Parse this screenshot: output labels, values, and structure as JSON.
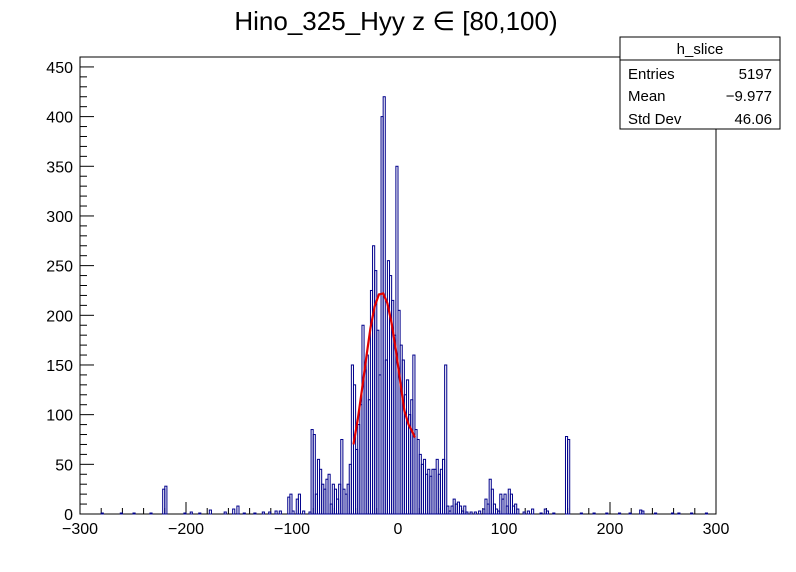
{
  "chart_data": {
    "type": "histogram",
    "title": "Hino_325_Hyy z  ∈ [80,100)",
    "xlim": [
      -300,
      300
    ],
    "ylim": [
      0,
      460
    ],
    "x_ticks": [
      -300,
      -200,
      -100,
      0,
      100,
      200,
      300
    ],
    "y_ticks": [
      0,
      50,
      100,
      150,
      200,
      250,
      300,
      350,
      400,
      450
    ],
    "bin_width": 2,
    "histogram_color": "#00008b",
    "fit_color": "#e00000",
    "bins": [
      {
        "x": -280,
        "y": 1
      },
      {
        "x": -262,
        "y": 1
      },
      {
        "x": -250,
        "y": 1
      },
      {
        "x": -234,
        "y": 1
      },
      {
        "x": -222,
        "y": 25
      },
      {
        "x": -220,
        "y": 28
      },
      {
        "x": -202,
        "y": 1
      },
      {
        "x": -196,
        "y": 2
      },
      {
        "x": -188,
        "y": 1
      },
      {
        "x": -178,
        "y": 4
      },
      {
        "x": -164,
        "y": 2
      },
      {
        "x": -156,
        "y": 5
      },
      {
        "x": -152,
        "y": 8
      },
      {
        "x": -146,
        "y": 1
      },
      {
        "x": -136,
        "y": 1
      },
      {
        "x": -128,
        "y": 2
      },
      {
        "x": -122,
        "y": 2
      },
      {
        "x": -116,
        "y": 3
      },
      {
        "x": -112,
        "y": 3
      },
      {
        "x": -104,
        "y": 17
      },
      {
        "x": -102,
        "y": 20
      },
      {
        "x": -100,
        "y": 3
      },
      {
        "x": -96,
        "y": 15
      },
      {
        "x": -94,
        "y": 20
      },
      {
        "x": -90,
        "y": 3
      },
      {
        "x": -84,
        "y": 2
      },
      {
        "x": -82,
        "y": 85
      },
      {
        "x": -80,
        "y": 80
      },
      {
        "x": -78,
        "y": 20
      },
      {
        "x": -76,
        "y": 55
      },
      {
        "x": -74,
        "y": 45
      },
      {
        "x": -72,
        "y": 30
      },
      {
        "x": -70,
        "y": 25
      },
      {
        "x": -68,
        "y": 35
      },
      {
        "x": -66,
        "y": 40
      },
      {
        "x": -64,
        "y": 10
      },
      {
        "x": -62,
        "y": 30
      },
      {
        "x": -60,
        "y": 25
      },
      {
        "x": -58,
        "y": 15
      },
      {
        "x": -56,
        "y": 30
      },
      {
        "x": -54,
        "y": 75
      },
      {
        "x": -52,
        "y": 25
      },
      {
        "x": -50,
        "y": 20
      },
      {
        "x": -48,
        "y": 30
      },
      {
        "x": -46,
        "y": 50
      },
      {
        "x": -44,
        "y": 150
      },
      {
        "x": -42,
        "y": 130
      },
      {
        "x": -40,
        "y": 65
      },
      {
        "x": -38,
        "y": 90
      },
      {
        "x": -36,
        "y": 110
      },
      {
        "x": -34,
        "y": 190
      },
      {
        "x": -32,
        "y": 145
      },
      {
        "x": -30,
        "y": 160
      },
      {
        "x": -28,
        "y": 115
      },
      {
        "x": -26,
        "y": 225
      },
      {
        "x": -24,
        "y": 270
      },
      {
        "x": -22,
        "y": 245
      },
      {
        "x": -20,
        "y": 185
      },
      {
        "x": -18,
        "y": 140
      },
      {
        "x": -16,
        "y": 400
      },
      {
        "x": -14,
        "y": 420
      },
      {
        "x": -12,
        "y": 155
      },
      {
        "x": -10,
        "y": 255
      },
      {
        "x": -8,
        "y": 240
      },
      {
        "x": -6,
        "y": 215
      },
      {
        "x": -4,
        "y": 180
      },
      {
        "x": -2,
        "y": 350
      },
      {
        "x": 0,
        "y": 205
      },
      {
        "x": 2,
        "y": 170
      },
      {
        "x": 4,
        "y": 155
      },
      {
        "x": 6,
        "y": 120
      },
      {
        "x": 8,
        "y": 135
      },
      {
        "x": 10,
        "y": 100
      },
      {
        "x": 12,
        "y": 115
      },
      {
        "x": 14,
        "y": 160
      },
      {
        "x": 16,
        "y": 85
      },
      {
        "x": 18,
        "y": 75
      },
      {
        "x": 20,
        "y": 60
      },
      {
        "x": 22,
        "y": 50
      },
      {
        "x": 24,
        "y": 55
      },
      {
        "x": 26,
        "y": 40
      },
      {
        "x": 28,
        "y": 45
      },
      {
        "x": 30,
        "y": 38
      },
      {
        "x": 32,
        "y": 45
      },
      {
        "x": 34,
        "y": 45
      },
      {
        "x": 36,
        "y": 55
      },
      {
        "x": 38,
        "y": 40
      },
      {
        "x": 40,
        "y": 45
      },
      {
        "x": 42,
        "y": 55
      },
      {
        "x": 44,
        "y": 150
      },
      {
        "x": 46,
        "y": 8
      },
      {
        "x": 48,
        "y": 3
      },
      {
        "x": 50,
        "y": 8
      },
      {
        "x": 52,
        "y": 15
      },
      {
        "x": 54,
        "y": 10
      },
      {
        "x": 56,
        "y": 12
      },
      {
        "x": 58,
        "y": 8
      },
      {
        "x": 60,
        "y": 3
      },
      {
        "x": 62,
        "y": 8
      },
      {
        "x": 64,
        "y": 2
      },
      {
        "x": 68,
        "y": 2
      },
      {
        "x": 72,
        "y": 2
      },
      {
        "x": 76,
        "y": 3
      },
      {
        "x": 80,
        "y": 5
      },
      {
        "x": 82,
        "y": 15
      },
      {
        "x": 84,
        "y": 10
      },
      {
        "x": 86,
        "y": 35
      },
      {
        "x": 88,
        "y": 25
      },
      {
        "x": 90,
        "y": 10
      },
      {
        "x": 92,
        "y": 5
      },
      {
        "x": 94,
        "y": 3
      },
      {
        "x": 96,
        "y": 20
      },
      {
        "x": 98,
        "y": 15
      },
      {
        "x": 100,
        "y": 20
      },
      {
        "x": 102,
        "y": 8
      },
      {
        "x": 104,
        "y": 25
      },
      {
        "x": 106,
        "y": 20
      },
      {
        "x": 108,
        "y": 8
      },
      {
        "x": 110,
        "y": 10
      },
      {
        "x": 112,
        "y": 5
      },
      {
        "x": 118,
        "y": 2
      },
      {
        "x": 122,
        "y": 3
      },
      {
        "x": 126,
        "y": 5
      },
      {
        "x": 134,
        "y": 1
      },
      {
        "x": 138,
        "y": 5
      },
      {
        "x": 140,
        "y": 3
      },
      {
        "x": 146,
        "y": 1
      },
      {
        "x": 158,
        "y": 78
      },
      {
        "x": 160,
        "y": 75
      },
      {
        "x": 172,
        "y": 1
      },
      {
        "x": 184,
        "y": 1
      },
      {
        "x": 196,
        "y": 1
      },
      {
        "x": 208,
        "y": 1
      },
      {
        "x": 218,
        "y": 1
      },
      {
        "x": 228,
        "y": 4
      },
      {
        "x": 230,
        "y": 3
      },
      {
        "x": 242,
        "y": 1
      },
      {
        "x": 258,
        "y": 1
      },
      {
        "x": 264,
        "y": 1
      },
      {
        "x": 276,
        "y": 1
      },
      {
        "x": 290,
        "y": 1
      }
    ],
    "fit": {
      "type": "gaussian",
      "x_range": [
        -42,
        16
      ],
      "points": [
        {
          "x": -42,
          "y": 70
        },
        {
          "x": -38,
          "y": 95
        },
        {
          "x": -34,
          "y": 125
        },
        {
          "x": -30,
          "y": 157
        },
        {
          "x": -26,
          "y": 187
        },
        {
          "x": -22,
          "y": 209
        },
        {
          "x": -18,
          "y": 221
        },
        {
          "x": -14,
          "y": 222
        },
        {
          "x": -10,
          "y": 212
        },
        {
          "x": -6,
          "y": 192
        },
        {
          "x": -2,
          "y": 165
        },
        {
          "x": 2,
          "y": 134
        },
        {
          "x": 6,
          "y": 104
        },
        {
          "x": 10,
          "y": 90
        },
        {
          "x": 13,
          "y": 84
        },
        {
          "x": 16,
          "y": 77
        }
      ]
    },
    "stats_box": {
      "name": "h_slice",
      "rows": [
        {
          "label": "Entries",
          "value": "5197"
        },
        {
          "label": "Mean",
          "value": "−9.977"
        },
        {
          "label": "Std Dev",
          "value": "46.06"
        }
      ]
    }
  }
}
